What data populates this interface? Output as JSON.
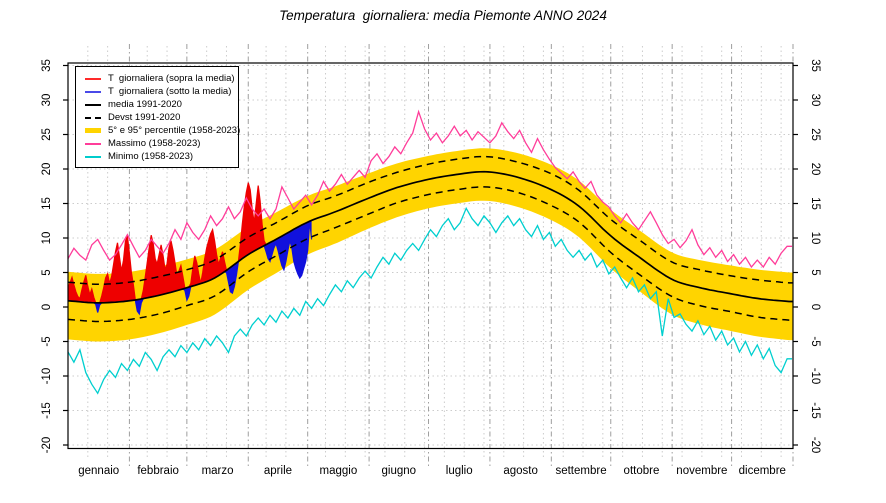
{
  "title": "Temperatura  giornaliera: media Piemonte ANNO 2024",
  "legend": {
    "items": [
      {
        "label": "T  giornaliera (sopra la media)",
        "color": "#ff2a2a",
        "style": "solid"
      },
      {
        "label": "T  giornaliera (sotto la media)",
        "color": "#4a4ae8",
        "style": "solid"
      },
      {
        "label": "media 1991-2020",
        "color": "#000000",
        "style": "solid"
      },
      {
        "label": "Devst 1991-2020",
        "color": "#000000",
        "style": "dashed"
      },
      {
        "label": "5° e 95° percentile (1958-2023)",
        "color": "#ffd400",
        "style": "thick"
      },
      {
        "label": "Massimo (1958-2023)",
        "color": "#ff3d9a",
        "style": "solid"
      },
      {
        "label": "Minimo (1958-2023)",
        "color": "#00cccc",
        "style": "solid"
      }
    ]
  },
  "chart_data": {
    "type": "line",
    "title": "Temperatura  giornaliera: media Piemonte ANNO 2024",
    "xlabel": "",
    "ylabel": "",
    "ylim": [
      -20.5,
      35.4
    ],
    "yticks": [
      -20,
      -15,
      -10,
      -5,
      0,
      5,
      10,
      15,
      20,
      25,
      30,
      35
    ],
    "months": [
      "gennaio",
      "febbraio",
      "marzo",
      "aprile",
      "maggio",
      "giugno",
      "luglio",
      "agosto",
      "settembre",
      "ottobre",
      "novembre",
      "dicembre"
    ],
    "days_in_month": [
      31,
      29,
      31,
      30,
      31,
      30,
      31,
      31,
      30,
      31,
      30,
      31
    ],
    "grid": {
      "minor_day_step": 10,
      "horizontal_step": 5
    },
    "legend_position": "top-left",
    "colors": {
      "daily_above": "#ee0000",
      "daily_below": "#1111dd",
      "mean": "#000000",
      "devst": "#000000",
      "band": "#ffd400",
      "massimo": "#ff3d9a",
      "minimo": "#00cfcf",
      "grid_minor": "#cccccc",
      "grid_month": "#9e9e9e"
    },
    "smooth_anchor_days": [
      0,
      15,
      31,
      46,
      60,
      74,
      91,
      105,
      121,
      135,
      152,
      166,
      182,
      196,
      211,
      227,
      244,
      258,
      274,
      288,
      305,
      319,
      335,
      349,
      364
    ],
    "series": {
      "media_1991_2020": [
        0.9,
        0.6,
        0.9,
        1.7,
        2.8,
        4.2,
        7.6,
        9.8,
        12.3,
        13.8,
        15.8,
        17.3,
        18.5,
        19.2,
        19.6,
        18.8,
        17.0,
        14.6,
        10.3,
        7.3,
        4.0,
        2.8,
        1.9,
        1.2,
        0.8
      ],
      "devst_upper": [
        3.6,
        3.3,
        3.6,
        4.4,
        5.4,
        6.8,
        10.1,
        12.2,
        14.7,
        16.1,
        18.1,
        19.5,
        20.7,
        21.4,
        21.8,
        21.0,
        19.3,
        16.9,
        12.7,
        9.8,
        6.5,
        5.4,
        4.5,
        3.9,
        3.5
      ],
      "devst_lower": [
        -1.8,
        -2.1,
        -1.8,
        -1.0,
        0.2,
        1.6,
        5.1,
        7.4,
        9.9,
        11.5,
        13.5,
        15.1,
        16.3,
        17.0,
        17.4,
        16.6,
        14.7,
        12.3,
        7.9,
        4.8,
        1.5,
        0.2,
        -0.7,
        -1.5,
        -1.9
      ],
      "percentile_95": [
        5.1,
        4.8,
        5.1,
        5.9,
        6.9,
        8.3,
        11.6,
        13.7,
        16.1,
        17.5,
        19.4,
        20.8,
        21.9,
        22.6,
        23.0,
        22.3,
        20.6,
        18.3,
        14.1,
        11.2,
        7.9,
        6.8,
        6.0,
        5.4,
        5.0
      ],
      "percentile_5": [
        -4.7,
        -5.0,
        -4.7,
        -3.8,
        -2.6,
        -1.1,
        2.5,
        4.9,
        7.6,
        9.2,
        11.4,
        13.0,
        14.3,
        15.0,
        15.4,
        14.5,
        12.6,
        10.1,
        5.6,
        2.4,
        -1.1,
        -2.5,
        -3.5,
        -4.3,
        -4.8
      ],
      "massimo": {
        "step_days": 3,
        "values": [
          7.0,
          8.5,
          7.5,
          6.8,
          9.0,
          9.8,
          8.2,
          6.8,
          7.6,
          9.0,
          10.5,
          8.8,
          7.2,
          8.2,
          9.8,
          8.8,
          7.8,
          9.2,
          11.2,
          9.8,
          12.2,
          10.8,
          9.8,
          11.2,
          13.2,
          11.8,
          12.8,
          14.5,
          12.8,
          13.8,
          15.8,
          14.2,
          13.2,
          14.2,
          12.8,
          14.2,
          17.4,
          15.8,
          14.2,
          15.2,
          16.2,
          14.8,
          16.2,
          18.2,
          16.8,
          17.8,
          19.2,
          17.8,
          18.8,
          19.8,
          18.8,
          21.2,
          22.2,
          20.8,
          21.8,
          23.2,
          22.2,
          23.8,
          25.2,
          28.3,
          25.8,
          24.2,
          25.2,
          23.8,
          24.8,
          26.2,
          24.8,
          25.6,
          24.2,
          25.4,
          24.6,
          23.8,
          24.8,
          26.7,
          25.4,
          24.4,
          25.6,
          23.8,
          22.4,
          24.4,
          22.8,
          21.4,
          20.2,
          19.4,
          18.6,
          19.6,
          18.2,
          17.2,
          18.2,
          16.2,
          15.2,
          14.5,
          13.2,
          12.2,
          13.5,
          12.2,
          11.2,
          12.5,
          13.8,
          12.2,
          10.5,
          9.2,
          9.8,
          8.6,
          9.6,
          11.2,
          9.0,
          7.6,
          8.6,
          7.2,
          8.2,
          6.6,
          7.6,
          6.2,
          7.2,
          5.8,
          6.8,
          5.8,
          7.2,
          6.2,
          7.8,
          8.8
        ]
      },
      "minimo": {
        "step_days": 3,
        "values": [
          -6.5,
          -8.0,
          -6.2,
          -9.5,
          -11.2,
          -12.5,
          -10.5,
          -9.2,
          -10.2,
          -8.2,
          -9.2,
          -7.6,
          -8.6,
          -6.6,
          -7.6,
          -9.2,
          -7.2,
          -6.2,
          -7.2,
          -5.6,
          -6.6,
          -5.2,
          -6.2,
          -4.6,
          -5.6,
          -4.2,
          -5.2,
          -6.6,
          -4.2,
          -3.2,
          -4.2,
          -2.6,
          -1.6,
          -2.6,
          -1.2,
          -2.2,
          -0.6,
          -1.6,
          -0.2,
          -1.2,
          0.8,
          -0.2,
          1.2,
          0.2,
          1.8,
          3.2,
          2.2,
          3.8,
          2.8,
          4.2,
          5.2,
          4.2,
          5.8,
          7.2,
          6.2,
          7.8,
          6.8,
          8.2,
          9.2,
          8.2,
          9.8,
          11.2,
          10.2,
          11.8,
          12.8,
          11.2,
          12.2,
          14.3,
          12.8,
          11.8,
          13.2,
          12.2,
          10.8,
          12.2,
          13.2,
          11.8,
          12.8,
          11.2,
          10.2,
          11.8,
          9.8,
          10.8,
          8.8,
          9.8,
          8.2,
          7.2,
          8.2,
          6.8,
          7.8,
          5.8,
          6.8,
          4.8,
          5.8,
          4.2,
          2.8,
          4.2,
          2.2,
          3.2,
          1.2,
          2.2,
          -4.2,
          1.2,
          -1.5,
          -1.0,
          -2.5,
          -3.5,
          -2.0,
          -4.0,
          -2.8,
          -4.8,
          -3.5,
          -5.5,
          -4.5,
          -6.5,
          -5.0,
          -7.0,
          -5.5,
          -7.5,
          -6.0,
          -8.5,
          -9.5,
          -7.5
        ]
      },
      "daily_2024": {
        "start_day": 0,
        "values": [
          2.8,
          3.5,
          4.3,
          3.2,
          2.2,
          1.5,
          1.2,
          2.5,
          3.6,
          4.6,
          3.0,
          1.8,
          2.6,
          1.4,
          0.4,
          -0.8,
          0.3,
          1.6,
          2.8,
          4.2,
          4.8,
          3.4,
          4.4,
          6.2,
          8.0,
          9.3,
          7.2,
          5.2,
          6.8,
          9.5,
          10.3,
          7.8,
          5.0,
          3.2,
          1.0,
          -0.6,
          -1.0,
          0.6,
          2.4,
          4.4,
          6.4,
          8.6,
          10.4,
          9.2,
          7.0,
          6.2,
          7.6,
          9.0,
          7.4,
          5.4,
          6.2,
          8.6,
          9.6,
          8.2,
          6.4,
          4.6,
          5.2,
          6.0,
          4.4,
          2.4,
          1.0,
          1.6,
          3.4,
          5.6,
          7.4,
          6.4,
          4.8,
          3.4,
          5.0,
          7.0,
          8.6,
          9.6,
          10.6,
          11.2,
          9.6,
          7.6,
          6.2,
          7.0,
          8.0,
          6.6,
          5.0,
          3.6,
          2.2,
          2.0,
          3.0,
          4.6,
          6.6,
          9.0,
          12.0,
          14.6,
          16.6,
          18.0,
          17.0,
          14.2,
          12.2,
          15.0,
          17.6,
          15.4,
          12.0,
          9.6,
          8.0,
          7.0,
          6.6,
          7.6,
          8.6,
          9.2,
          8.2,
          7.0,
          6.0,
          5.4,
          6.6,
          8.2,
          9.6,
          8.6,
          6.6,
          5.6,
          4.8,
          4.2,
          4.6,
          5.6,
          6.6,
          8.2,
          12.4,
          9.8
        ]
      }
    }
  }
}
